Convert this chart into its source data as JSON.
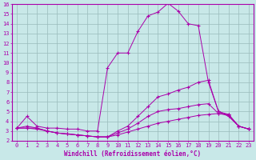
{
  "title": "",
  "xlabel": "Windchill (Refroidissement éolien,°C)",
  "ylabel": "",
  "bg_color": "#c8e8e8",
  "line_color": "#aa00aa",
  "grid_color": "#99bbbb",
  "xlim": [
    -0.5,
    23.5
  ],
  "ylim": [
    2,
    16
  ],
  "xticks": [
    0,
    1,
    2,
    3,
    4,
    5,
    6,
    7,
    8,
    9,
    10,
    11,
    12,
    13,
    14,
    15,
    16,
    17,
    18,
    19,
    20,
    21,
    22,
    23
  ],
  "yticks": [
    2,
    3,
    4,
    5,
    6,
    7,
    8,
    9,
    10,
    11,
    12,
    13,
    14,
    15,
    16
  ],
  "line1_x": [
    0,
    1,
    2,
    3,
    4,
    5,
    6,
    7,
    8,
    9,
    10,
    11,
    12,
    13,
    14,
    15,
    16,
    17,
    18,
    19,
    20,
    21,
    22,
    23
  ],
  "line1_y": [
    3.3,
    4.5,
    3.5,
    3.3,
    3.3,
    3.2,
    3.2,
    3.0,
    3.0,
    9.5,
    11.0,
    11.0,
    13.2,
    14.8,
    15.2,
    16.1,
    15.3,
    14.0,
    13.8,
    8.0,
    5.0,
    4.7,
    3.5,
    3.2
  ],
  "line2_x": [
    0,
    1,
    2,
    3,
    4,
    5,
    6,
    7,
    8,
    9,
    10,
    11,
    12,
    13,
    14,
    15,
    16,
    17,
    18,
    19,
    20,
    21,
    22,
    23
  ],
  "line2_y": [
    3.3,
    3.5,
    3.3,
    3.0,
    2.8,
    2.7,
    2.6,
    2.5,
    2.4,
    2.4,
    3.0,
    3.5,
    4.5,
    5.5,
    6.5,
    6.8,
    7.2,
    7.5,
    8.0,
    8.2,
    5.0,
    4.5,
    3.5,
    3.2
  ],
  "line3_x": [
    0,
    1,
    2,
    3,
    4,
    5,
    6,
    7,
    8,
    9,
    10,
    11,
    12,
    13,
    14,
    15,
    16,
    17,
    18,
    19,
    20,
    21,
    22,
    23
  ],
  "line3_y": [
    3.3,
    3.3,
    3.3,
    3.0,
    2.8,
    2.7,
    2.6,
    2.5,
    2.4,
    2.4,
    2.8,
    3.2,
    3.8,
    4.5,
    5.0,
    5.2,
    5.3,
    5.5,
    5.7,
    5.8,
    4.8,
    4.6,
    3.5,
    3.2
  ],
  "line4_x": [
    0,
    1,
    2,
    3,
    4,
    5,
    6,
    7,
    8,
    9,
    10,
    11,
    12,
    13,
    14,
    15,
    16,
    17,
    18,
    19,
    20,
    21,
    22,
    23
  ],
  "line4_y": [
    3.3,
    3.3,
    3.2,
    3.0,
    2.8,
    2.7,
    2.6,
    2.5,
    2.4,
    2.4,
    2.6,
    2.9,
    3.2,
    3.5,
    3.8,
    4.0,
    4.2,
    4.4,
    4.6,
    4.7,
    4.8,
    4.7,
    3.5,
    3.2
  ]
}
